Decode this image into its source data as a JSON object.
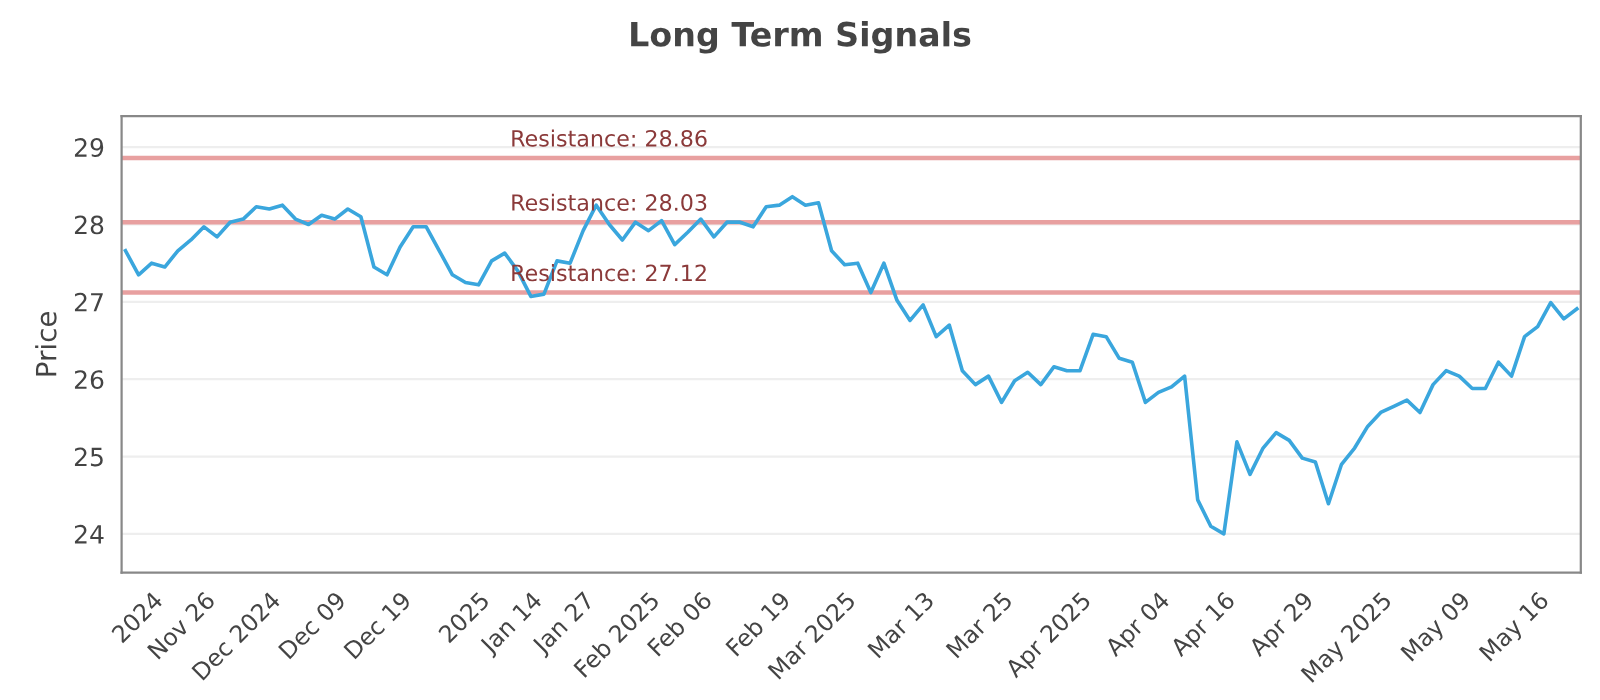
{
  "chart_data": {
    "type": "line",
    "title": "Long Term Signals",
    "ylabel": "Price",
    "categories": [
      null,
      null,
      "2024",
      null,
      null,
      null,
      "Nov 26",
      null,
      null,
      null,
      null,
      "Dec 2024",
      null,
      null,
      null,
      null,
      "Dec 09",
      null,
      null,
      null,
      null,
      "Dec 19",
      null,
      null,
      null,
      null,
      null,
      "2025",
      null,
      null,
      null,
      "Jan 14",
      null,
      null,
      null,
      "Jan 27",
      null,
      null,
      null,
      null,
      "Feb 2025",
      null,
      null,
      null,
      "Feb 06",
      null,
      null,
      null,
      null,
      null,
      "Feb 19",
      null,
      null,
      null,
      null,
      "Mar 2025",
      null,
      null,
      null,
      null,
      null,
      "Mar 13",
      null,
      null,
      null,
      null,
      null,
      "Mar 25",
      null,
      null,
      null,
      null,
      null,
      "Apr 2025",
      null,
      null,
      null,
      null,
      null,
      "Apr 04",
      null,
      null,
      null,
      null,
      "Apr 16",
      null,
      null,
      null,
      null,
      null,
      "Apr 29",
      null,
      null,
      null,
      null,
      null,
      "May 2025",
      null,
      null,
      null,
      null,
      null,
      "May 09",
      null,
      null,
      null,
      null,
      null,
      "May 16",
      null,
      null,
      null
    ],
    "series": [
      {
        "color": "#3aa6dd",
        "values": [
          27.66,
          27.35,
          27.5,
          27.45,
          27.66,
          27.8,
          27.97,
          27.84,
          28.03,
          28.07,
          28.23,
          28.2,
          28.25,
          28.07,
          28.0,
          28.12,
          28.07,
          28.2,
          28.1,
          27.45,
          27.35,
          27.71,
          27.97,
          27.97,
          27.66,
          27.35,
          27.25,
          27.22,
          27.53,
          27.63,
          27.4,
          27.07,
          27.1,
          27.53,
          27.5,
          27.92,
          28.25,
          28.0,
          27.8,
          28.03,
          27.92,
          28.05,
          27.74,
          27.9,
          28.07,
          27.84,
          28.03,
          28.03,
          27.97,
          28.23,
          28.25,
          28.36,
          28.25,
          28.28,
          27.66,
          27.48,
          27.5,
          27.12,
          27.5,
          27.02,
          26.76,
          26.96,
          26.55,
          26.7,
          26.11,
          25.93,
          26.04,
          25.7,
          25.98,
          26.09,
          25.93,
          26.16,
          26.11,
          26.11,
          26.58,
          26.55,
          26.27,
          26.22,
          25.7,
          25.83,
          25.9,
          26.04,
          24.44,
          24.1,
          24.0,
          25.19,
          24.77,
          25.11,
          25.31,
          25.21,
          24.98,
          24.93,
          24.39,
          24.9,
          25.11,
          25.39,
          25.57,
          25.65,
          25.73,
          25.57,
          25.93,
          26.11,
          26.04,
          25.88,
          25.88,
          26.22,
          26.04,
          26.55,
          26.68,
          26.99,
          26.78,
          26.91
        ]
      }
    ],
    "ylim": [
      23.5,
      29.4
    ],
    "yticks": [
      24,
      25,
      26,
      27,
      28,
      29
    ],
    "grid": "y",
    "marker": "none",
    "line_style": "solid",
    "ref_lines": [
      {
        "axis": "y",
        "value": 28.86,
        "label": "Resistance: 28.86",
        "color": "#e8a0a0"
      },
      {
        "axis": "y",
        "value": 28.03,
        "label": "Resistance: 28.03",
        "color": "#e8a0a0"
      },
      {
        "axis": "y",
        "value": 27.12,
        "label": "Resistance: 27.12",
        "color": "#e8a0a0"
      }
    ]
  }
}
